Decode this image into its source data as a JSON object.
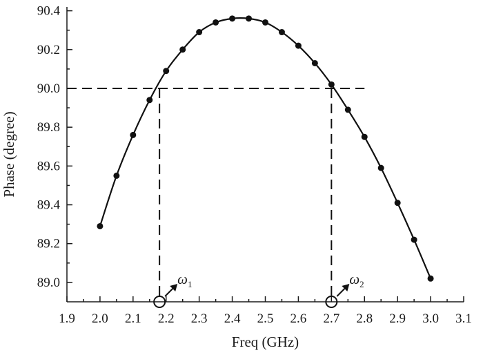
{
  "chart_data": {
    "type": "line",
    "title": "",
    "xlabel": "Freq (GHz)",
    "ylabel": "Phase (degree)",
    "xlim": [
      1.9,
      3.1
    ],
    "ylim": [
      88.9,
      90.42
    ],
    "xticks": [
      "1.9",
      "2.0",
      "2.1",
      "2.2",
      "2.3",
      "2.4",
      "2.5",
      "2.6",
      "2.7",
      "2.8",
      "2.9",
      "3.0",
      "3.1"
    ],
    "yticks": [
      "89.0",
      "89.2",
      "89.4",
      "89.6",
      "89.8",
      "90.0",
      "90.2",
      "90.4"
    ],
    "grid": false,
    "series": [
      {
        "x": [
          2.0,
          2.05,
          2.1,
          2.15,
          2.2,
          2.25,
          2.3,
          2.35,
          2.4,
          2.45,
          2.5,
          2.55,
          2.6,
          2.65,
          2.7,
          2.75,
          2.8,
          2.85,
          2.9,
          2.95,
          3.0
        ],
        "y": [
          89.29,
          89.55,
          89.76,
          89.94,
          90.09,
          90.2,
          90.29,
          90.34,
          90.36,
          90.36,
          90.34,
          90.29,
          90.22,
          90.13,
          90.02,
          89.89,
          89.75,
          89.59,
          89.41,
          89.22,
          89.02
        ],
        "marker": "circle",
        "color": "#111111"
      }
    ],
    "reference_line_y": 90.0,
    "reference_x_end": 2.8,
    "annotations": [
      {
        "name": "omega1",
        "symbol": "ω",
        "subscript": "1",
        "x": 2.18
      },
      {
        "name": "omega2",
        "symbol": "ω",
        "subscript": "2",
        "x": 2.7
      }
    ]
  }
}
